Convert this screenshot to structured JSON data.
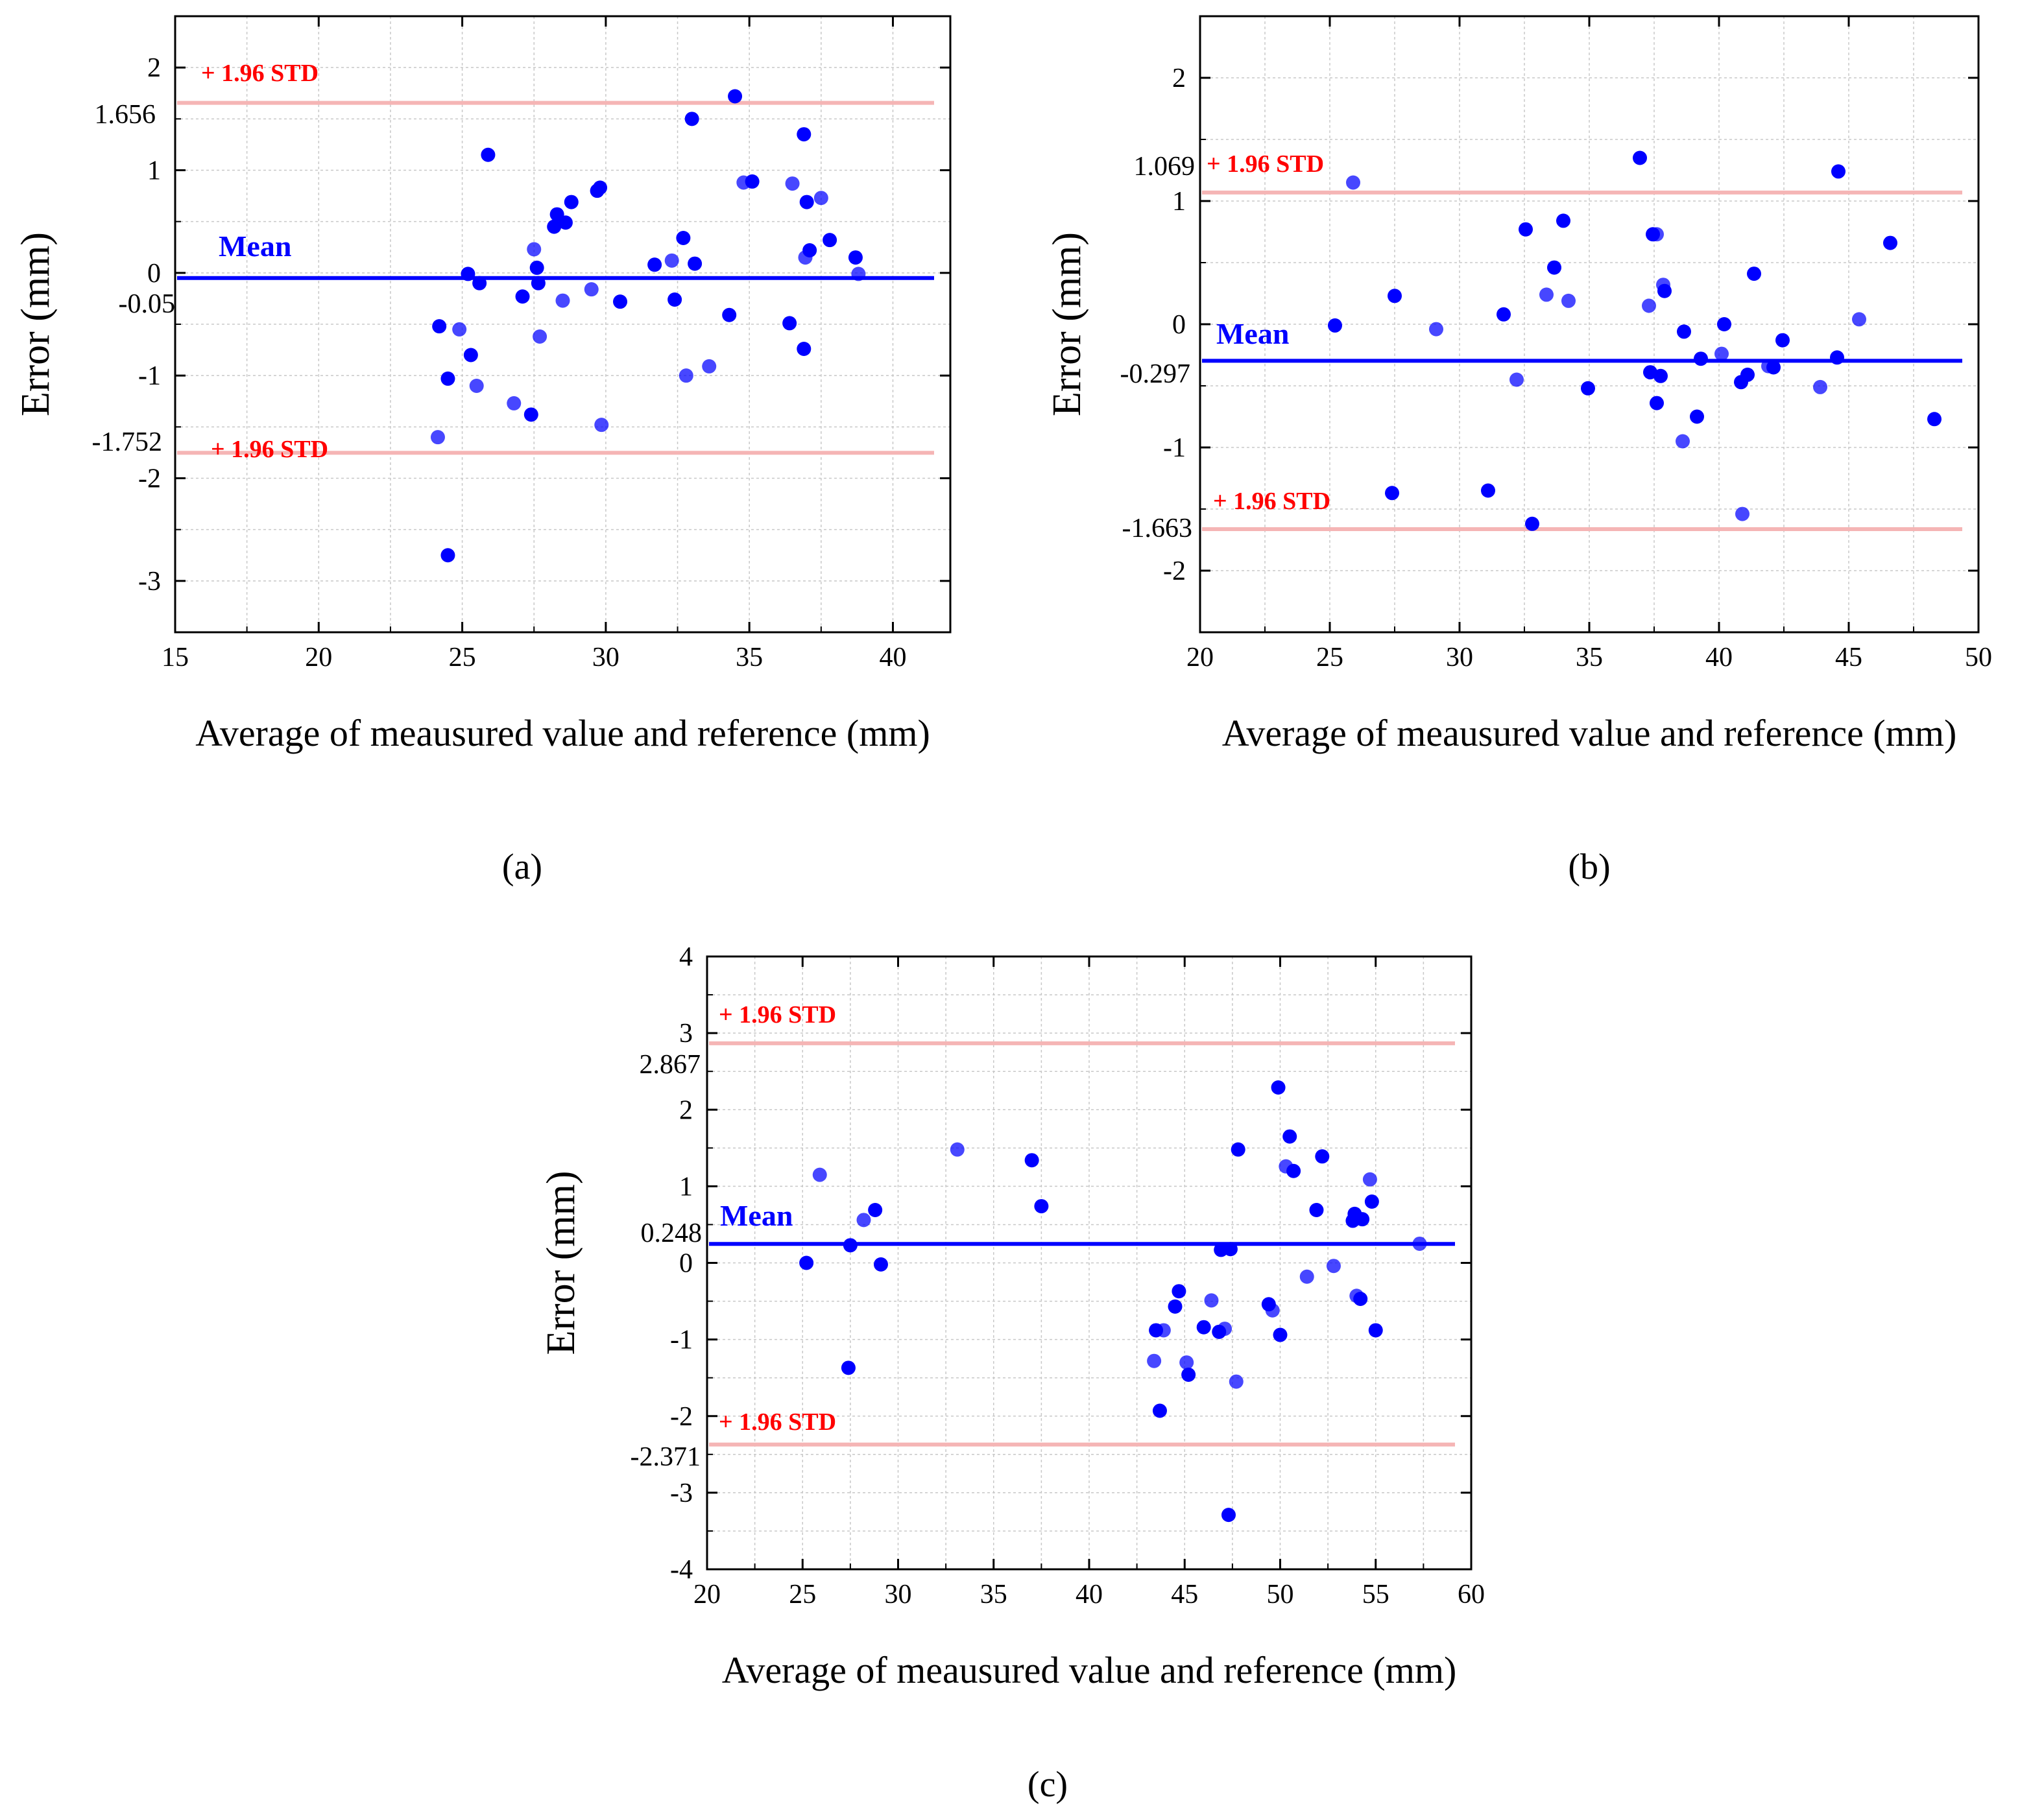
{
  "colors": {
    "mean_line": "#0000ff",
    "std_line": "#f5b5b5",
    "std_text": "#ff0000",
    "point": "#0000ff"
  },
  "chart_data": [
    {
      "type": "scatter",
      "panel": "(a)",
      "title": "",
      "xlabel": "Average of meausured value and reference (mm)",
      "ylabel": "Error (mm)",
      "xlim": [
        15,
        42
      ],
      "ylim": [
        -3.5,
        2.5
      ],
      "xticks": [
        15,
        20,
        25,
        30,
        35,
        40
      ],
      "yticks": [
        -3,
        -2,
        -1,
        0,
        1,
        2
      ],
      "grid": true,
      "mean": -0.05,
      "upper_loa": 1.656,
      "lower_loa": -1.752,
      "mean_label": "Mean",
      "upper_label": "+ 1.96 STD",
      "lower_label": "+ 1.96 STD",
      "mean_value_text": "-0.05",
      "upper_value_text": "1.656",
      "lower_value_text": "-1.752",
      "points": [
        [
          24.2,
          -0.52
        ],
        [
          24.15,
          -1.6
        ],
        [
          24.5,
          -1.03
        ],
        [
          24.5,
          -2.75
        ],
        [
          24.9,
          -0.55
        ],
        [
          25.2,
          -0.01
        ],
        [
          25.3,
          -0.8
        ],
        [
          25.5,
          -1.1
        ],
        [
          25.6,
          -0.1
        ],
        [
          25.9,
          1.15
        ],
        [
          26.8,
          -1.27
        ],
        [
          27.1,
          -0.23
        ],
        [
          27.4,
          -1.38
        ],
        [
          27.5,
          0.23
        ],
        [
          27.6,
          0.05
        ],
        [
          27.65,
          -0.1
        ],
        [
          27.7,
          -0.62
        ],
        [
          28.2,
          0.45
        ],
        [
          28.3,
          0.57
        ],
        [
          28.5,
          -0.27
        ],
        [
          28.6,
          0.49
        ],
        [
          28.8,
          0.69
        ],
        [
          29.5,
          -0.16
        ],
        [
          29.7,
          0.8
        ],
        [
          29.8,
          0.83
        ],
        [
          29.85,
          -1.48
        ],
        [
          30.5,
          -0.28
        ],
        [
          31.7,
          0.08
        ],
        [
          32.3,
          0.12
        ],
        [
          32.4,
          -0.26
        ],
        [
          32.7,
          0.34
        ],
        [
          32.8,
          -1.0
        ],
        [
          33.0,
          1.5
        ],
        [
          33.1,
          0.09
        ],
        [
          33.6,
          -0.91
        ],
        [
          34.3,
          -0.41
        ],
        [
          34.5,
          1.72
        ],
        [
          34.8,
          0.88
        ],
        [
          35.1,
          0.89
        ],
        [
          36.4,
          -0.49
        ],
        [
          36.5,
          0.87
        ],
        [
          36.9,
          1.35
        ],
        [
          36.9,
          -0.74
        ],
        [
          36.95,
          0.15
        ],
        [
          37.0,
          0.69
        ],
        [
          37.1,
          0.22
        ],
        [
          37.5,
          0.73
        ],
        [
          37.8,
          0.32
        ],
        [
          38.7,
          0.15
        ],
        [
          38.8,
          -0.01
        ]
      ]
    },
    {
      "type": "scatter",
      "panel": "(b)",
      "title": "",
      "xlabel": "Average of meausured value and reference (mm)",
      "ylabel": "Error (mm)",
      "xlim": [
        20,
        50
      ],
      "ylim": [
        -2.5,
        2.5
      ],
      "xticks": [
        20,
        25,
        30,
        35,
        40,
        45,
        50
      ],
      "yticks": [
        -2,
        -1,
        0,
        1,
        2
      ],
      "grid": true,
      "mean": -0.297,
      "upper_loa": 1.069,
      "lower_loa": -1.663,
      "mean_label": "Mean",
      "upper_label": "+ 1.96 STD",
      "lower_label": "+ 1.96 STD",
      "mean_value_text": "-0.297",
      "upper_value_text": "1.069",
      "lower_value_text": "-1.663",
      "points": [
        [
          25.2,
          -0.01
        ],
        [
          25.9,
          1.15
        ],
        [
          27.4,
          -1.37
        ],
        [
          27.5,
          0.23
        ],
        [
          29.1,
          -0.04
        ],
        [
          31.1,
          -1.35
        ],
        [
          31.7,
          0.08
        ],
        [
          32.2,
          -0.45
        ],
        [
          32.55,
          0.77
        ],
        [
          32.8,
          -1.62
        ],
        [
          33.35,
          0.24
        ],
        [
          33.65,
          0.46
        ],
        [
          34.0,
          0.84
        ],
        [
          34.2,
          0.19
        ],
        [
          34.95,
          -0.52
        ],
        [
          36.95,
          1.35
        ],
        [
          37.3,
          0.15
        ],
        [
          37.35,
          -0.39
        ],
        [
          37.45,
          0.73
        ],
        [
          37.6,
          0.73
        ],
        [
          37.6,
          -0.64
        ],
        [
          37.75,
          -0.42
        ],
        [
          37.85,
          0.32
        ],
        [
          37.9,
          0.27
        ],
        [
          38.65,
          -0.06
        ],
        [
          38.6,
          -0.95
        ],
        [
          39.15,
          -0.75
        ],
        [
          39.3,
          -0.28
        ],
        [
          40.1,
          -0.24
        ],
        [
          40.2,
          0.0
        ],
        [
          40.85,
          -0.47
        ],
        [
          40.9,
          -1.54
        ],
        [
          41.1,
          -0.41
        ],
        [
          41.35,
          0.41
        ],
        [
          41.9,
          -0.34
        ],
        [
          42.1,
          -0.35
        ],
        [
          42.45,
          -0.13
        ],
        [
          43.9,
          -0.51
        ],
        [
          44.55,
          -0.27
        ],
        [
          44.6,
          1.24
        ],
        [
          45.4,
          0.04
        ],
        [
          46.6,
          0.66
        ],
        [
          48.3,
          -0.77
        ]
      ]
    },
    {
      "type": "scatter",
      "panel": "(c)",
      "title": "",
      "xlabel": "Average of meausured value and reference (mm)",
      "ylabel": "Error (mm)",
      "xlim": [
        20,
        60
      ],
      "ylim": [
        -4,
        4
      ],
      "xticks": [
        20,
        25,
        30,
        35,
        40,
        45,
        50,
        55,
        60
      ],
      "yticks": [
        -4,
        -3,
        -2,
        -1,
        0,
        1,
        2,
        3,
        4
      ],
      "grid": true,
      "mean": 0.248,
      "upper_loa": 2.867,
      "lower_loa": -2.371,
      "mean_label": "Mean",
      "upper_label": "+ 1.96 STD",
      "lower_label": "+ 1.96 STD",
      "mean_value_text": "0.248",
      "upper_value_text": "2.867",
      "lower_value_text": "-2.371",
      "points": [
        [
          25.2,
          0.0
        ],
        [
          25.9,
          1.15
        ],
        [
          27.4,
          -1.37
        ],
        [
          27.5,
          0.23
        ],
        [
          28.2,
          0.56
        ],
        [
          28.8,
          0.69
        ],
        [
          29.1,
          -0.02
        ],
        [
          33.1,
          1.48
        ],
        [
          37.0,
          1.34
        ],
        [
          37.5,
          0.74
        ],
        [
          43.4,
          -1.28
        ],
        [
          43.5,
          -0.88
        ],
        [
          43.7,
          -1.93
        ],
        [
          43.9,
          -0.88
        ],
        [
          44.5,
          -0.57
        ],
        [
          44.7,
          -0.37
        ],
        [
          45.1,
          -1.3
        ],
        [
          45.2,
          -1.46
        ],
        [
          46.0,
          -0.84
        ],
        [
          46.4,
          -0.49
        ],
        [
          46.8,
          -0.9
        ],
        [
          46.9,
          0.17
        ],
        [
          47.1,
          -0.86
        ],
        [
          47.3,
          -3.29
        ],
        [
          47.4,
          0.18
        ],
        [
          47.7,
          -1.55
        ],
        [
          47.8,
          1.48
        ],
        [
          49.4,
          -0.54
        ],
        [
          49.6,
          -0.62
        ],
        [
          49.9,
          2.29
        ],
        [
          50.0,
          -0.94
        ],
        [
          50.3,
          1.26
        ],
        [
          50.5,
          1.65
        ],
        [
          50.7,
          1.2
        ],
        [
          51.4,
          -0.18
        ],
        [
          51.9,
          0.69
        ],
        [
          52.2,
          1.39
        ],
        [
          52.8,
          -0.04
        ],
        [
          53.8,
          0.55
        ],
        [
          53.9,
          0.64
        ],
        [
          54.0,
          -0.43
        ],
        [
          54.2,
          -0.47
        ],
        [
          54.3,
          0.57
        ],
        [
          54.7,
          1.09
        ],
        [
          54.8,
          0.8
        ],
        [
          55.0,
          -0.88
        ],
        [
          57.3,
          0.25
        ]
      ]
    }
  ]
}
